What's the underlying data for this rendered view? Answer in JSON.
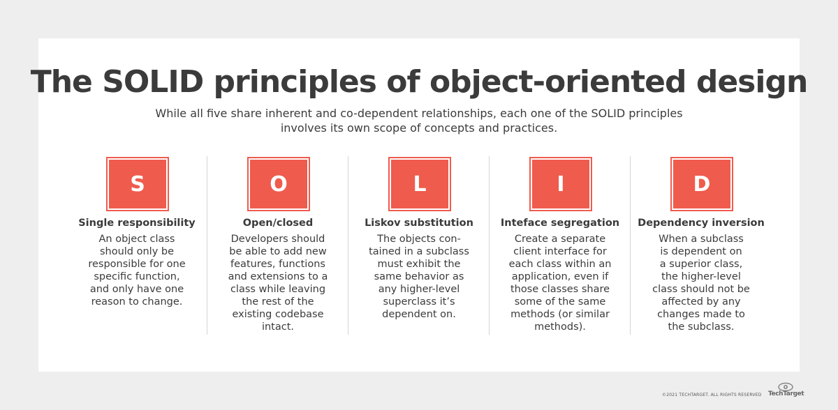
{
  "title": "The SOLID principles of object-oriented design",
  "subtitle_lines": [
    "While all five share inherent and co-dependent relationships, each one of the SOLID principles",
    "involves its own scope of concepts and practices."
  ],
  "colors": {
    "accent": "#ef5b4d",
    "text": "#3b3b3b",
    "background": "#eeeeee"
  },
  "principles": [
    {
      "letter": "S",
      "name": "Single responsibility",
      "lines": [
        "An object class",
        "should only be",
        "responsible for one",
        "specific function,",
        "and only have one",
        "reason to change."
      ]
    },
    {
      "letter": "O",
      "name": "Open/closed",
      "lines": [
        "Developers should",
        "be able to add new",
        "features, functions",
        "and extensions to a",
        "class while leaving",
        "the rest of the",
        "existing codebase",
        "intact."
      ]
    },
    {
      "letter": "L",
      "name": "Liskov substitution",
      "lines": [
        "The objects con-",
        "tained in a subclass",
        "must exhibit the",
        "same behavior as",
        "any higher-level",
        "superclass it’s",
        "dependent on."
      ]
    },
    {
      "letter": "I",
      "name": "Inteface segregation",
      "lines": [
        "Create a separate",
        "client interface for",
        "each class within an",
        "application, even if",
        "those classes share",
        "some of the same",
        "methods (or similar",
        "methods)."
      ]
    },
    {
      "letter": "D",
      "name": "Dependency inversion",
      "lines": [
        "When a subclass",
        "is dependent on",
        "a superior class,",
        "the higher-level",
        "class should not be",
        "affected by any",
        "changes made to",
        "the subclass."
      ]
    }
  ],
  "footer": {
    "copyright": "©2021 TECHTARGET. ALL RIGHTS RESERVED",
    "logo_text": "TechTarget",
    "logo_icon": "eye-icon"
  }
}
